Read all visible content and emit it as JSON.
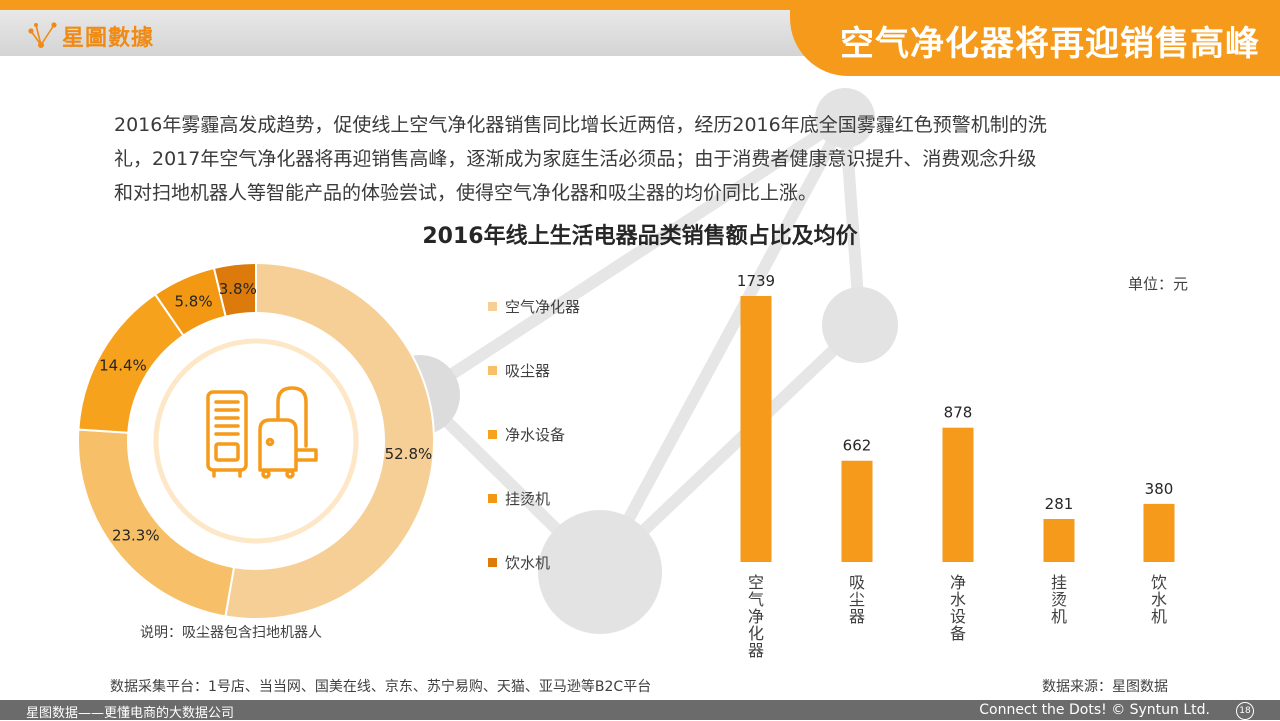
{
  "header": {
    "logo_text": "星圖數據",
    "title": "空气净化器将再迎销售高峰"
  },
  "intro": {
    "lines": [
      "2016年雾霾高发成趋势，促使线上空气净化器销售同比增长近两倍，经历2016年底全国雾霾红色预警机制的洗",
      "礼，2017年空气净化器将再迎销售高峰，逐渐成为家庭生活必须品；由于消费者健康意识提升、消费观念升级",
      "和对扫地机器人等智能产品的体验尝试，使得空气净化器和吸尘器的均价同比上涨。"
    ]
  },
  "chart_title": "2016年线上生活电器品类销售额占比及均价",
  "chart_data": [
    {
      "type": "pie",
      "subtype": "donut",
      "labels": [
        "空气净化器",
        "吸尘器",
        "净水设备",
        "挂烫机",
        "饮水机"
      ],
      "values": [
        52.8,
        23.3,
        14.4,
        5.8,
        3.8
      ],
      "value_labels": [
        "52.8%",
        "23.3%",
        "14.4%",
        "5.8%",
        "3.8%"
      ],
      "colors": [
        "#f6cf96",
        "#f7bf67",
        "#f6a21d",
        "#f29812",
        "#dc7b0b"
      ],
      "legend_position": "right",
      "note": "说明：吸尘器包含扫地机器人"
    },
    {
      "type": "bar",
      "categories": [
        "空气净化器",
        "吸尘器",
        "净水设备",
        "挂烫机",
        "饮水机"
      ],
      "values": [
        1739,
        662,
        878,
        281,
        380
      ],
      "color": "#f59a1a",
      "ylim": [
        0,
        1739
      ],
      "unit": "单位：元",
      "grid": false
    }
  ],
  "footer": {
    "platforms": "数据采集平台：1号店、当当网、国美在线、京东、苏宁易购、天猫、亚马逊等B2C平台",
    "source": "数据来源：星图数据",
    "left": "星图数据——更懂电商的大数据公司",
    "right": "Connect the Dots! © Syntun Ltd.",
    "page": "18"
  },
  "icons": {
    "logo": "constellation-logo-icon",
    "center": "air-purifier-vacuum-icon"
  }
}
